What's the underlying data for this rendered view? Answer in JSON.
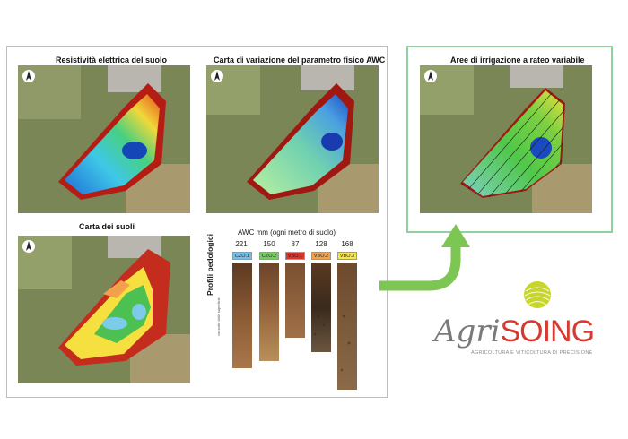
{
  "maps": {
    "resistivity_title": "Resistività elettrica del suolo",
    "awc_map_title": "Carta di variazione del parametro fisico AWC",
    "irrigation_title": "Aree di irrigazione a rateo variabile",
    "soils_title": "Carta dei suoli"
  },
  "profiles": {
    "awc_title": "AWC mm (ogni metro di suolo)",
    "side_label": "Profili pedologici",
    "side_sublabel": "cm sotto dalla superficie",
    "items": [
      {
        "awc": "221",
        "code": "CZO.1",
        "color": "#6fc0ea"
      },
      {
        "awc": "150",
        "code": "CZO.2",
        "color": "#6fcf5a"
      },
      {
        "awc": "87",
        "code": "VBO.1",
        "color": "#d9342b"
      },
      {
        "awc": "128",
        "code": "VBO.2",
        "color": "#f2a04a"
      },
      {
        "awc": "168",
        "code": "VBO.3",
        "color": "#f5e44e"
      }
    ]
  },
  "brand": {
    "name_part1": "Agri",
    "name_part2": "SOING",
    "tagline": "AGRICOLTURA E VITICOLTURA DI PRECISIONE",
    "accent_color": "#d63a2f",
    "logo_color": "#c8d62b"
  },
  "icons": [
    "north-arrow-icon",
    "sphere-logo-icon",
    "curved-arrow-icon"
  ]
}
